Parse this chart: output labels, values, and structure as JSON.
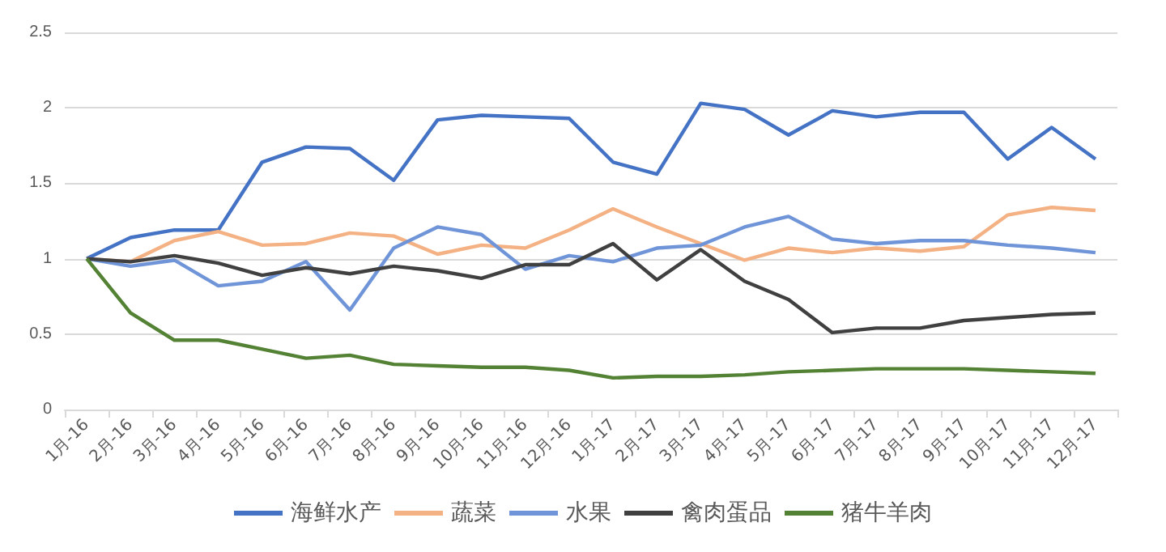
{
  "chart_data": {
    "type": "line",
    "categories": [
      "1月-16",
      "2月-16",
      "3月-16",
      "4月-16",
      "5月-16",
      "6月-16",
      "7月-16",
      "8月-16",
      "9月-16",
      "10月-16",
      "11月-16",
      "12月-16",
      "1月-17",
      "2月-17",
      "3月-17",
      "4月-17",
      "5月-17",
      "6月-17",
      "7月-17",
      "8月-17",
      "9月-17",
      "10月-17",
      "11月-17",
      "12月-17"
    ],
    "series": [
      {
        "name": "海鲜水产",
        "color": "#4472c4",
        "values": [
          1,
          1.14,
          1.19,
          1.19,
          1.64,
          1.74,
          1.73,
          1.52,
          1.92,
          1.95,
          1.94,
          1.93,
          1.64,
          1.56,
          2.03,
          1.99,
          1.82,
          1.98,
          1.94,
          1.97,
          1.97,
          1.66,
          1.87,
          1.66
        ]
      },
      {
        "name": "蔬菜",
        "color": "#f4b183",
        "values": [
          1,
          0.98,
          1.12,
          1.18,
          1.09,
          1.1,
          1.17,
          1.15,
          1.03,
          1.09,
          1.07,
          1.19,
          1.33,
          1.21,
          1.1,
          0.99,
          1.07,
          1.04,
          1.07,
          1.05,
          1.08,
          1.29,
          1.34,
          1.32
        ]
      },
      {
        "name": "水果",
        "color": "#6f95d8",
        "values": [
          1,
          0.95,
          0.99,
          0.82,
          0.85,
          0.98,
          0.66,
          1.07,
          1.21,
          1.16,
          0.93,
          1.02,
          0.98,
          1.07,
          1.09,
          1.21,
          1.28,
          1.13,
          1.1,
          1.12,
          1.12,
          1.09,
          1.07,
          1.04
        ]
      },
      {
        "name": "禽肉蛋品",
        "color": "#404040",
        "values": [
          1,
          0.98,
          1.02,
          0.97,
          0.89,
          0.94,
          0.9,
          0.95,
          0.92,
          0.87,
          0.96,
          0.96,
          1.1,
          0.86,
          1.06,
          0.85,
          0.73,
          0.51,
          0.54,
          0.54,
          0.59,
          0.61,
          0.63,
          0.64
        ]
      },
      {
        "name": "猪牛羊肉",
        "color": "#548235",
        "values": [
          1,
          0.64,
          0.46,
          0.46,
          0.4,
          0.34,
          0.36,
          0.3,
          0.29,
          0.28,
          0.28,
          0.26,
          0.21,
          0.22,
          0.22,
          0.23,
          0.25,
          0.26,
          0.27,
          0.27,
          0.27,
          0.26,
          0.25,
          0.24
        ]
      }
    ],
    "ylim": [
      0,
      2.5
    ],
    "yticks": [
      0,
      0.5,
      1,
      1.5,
      2,
      2.5
    ],
    "grid": "y",
    "legend": "bottom",
    "marker": "none",
    "line_style": "solid"
  }
}
